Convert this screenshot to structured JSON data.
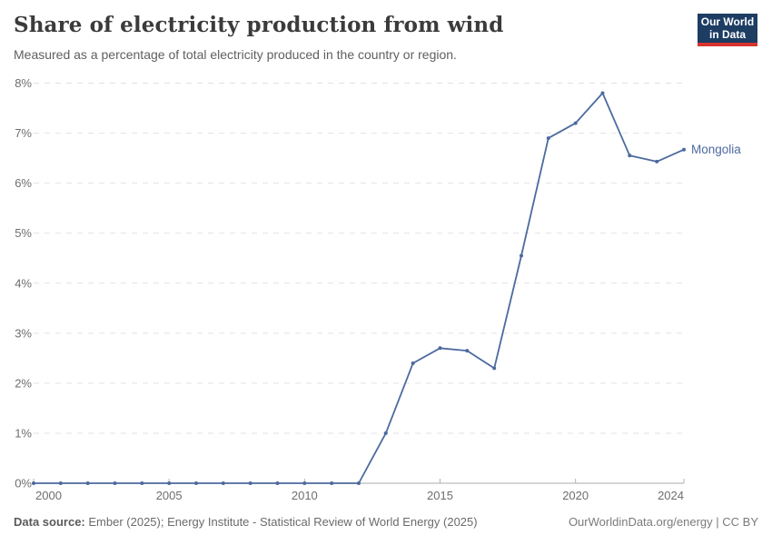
{
  "header": {
    "logo_line1": "Our World",
    "logo_line2": "in Data"
  },
  "chart_data": {
    "type": "line",
    "title": "Share of electricity production from wind",
    "subtitle": "Measured as a percentage of total electricity produced in the country or region.",
    "xlabel": "",
    "ylabel": "",
    "xlim": [
      2000,
      2024
    ],
    "ylim": [
      0,
      8
    ],
    "grid": "horizontal-dashed",
    "legend_position": "end-of-line-label",
    "xticks": [
      2000,
      2005,
      2010,
      2015,
      2020,
      2024
    ],
    "yticks": [
      0,
      1,
      2,
      3,
      4,
      5,
      6,
      7,
      8
    ],
    "ytick_labels": [
      "0%",
      "1%",
      "2%",
      "3%",
      "4%",
      "5%",
      "6%",
      "7%",
      "8%"
    ],
    "x": [
      2000,
      2001,
      2002,
      2003,
      2004,
      2005,
      2006,
      2007,
      2008,
      2009,
      2010,
      2011,
      2012,
      2013,
      2014,
      2015,
      2016,
      2017,
      2018,
      2019,
      2020,
      2021,
      2022,
      2023,
      2024
    ],
    "series": [
      {
        "name": "Mongolia",
        "color": "#4c6a9f",
        "values": [
          0,
          0,
          0,
          0,
          0,
          0,
          0,
          0,
          0,
          0,
          0,
          0,
          0,
          1.0,
          2.4,
          2.7,
          2.65,
          2.3,
          4.55,
          6.9,
          7.2,
          7.8,
          6.55,
          6.43,
          6.67
        ]
      }
    ]
  },
  "footer": {
    "source_label": "Data source:",
    "source_text": "Ember (2025); Energy Institute - Statistical Review of World Energy (2025)",
    "right_text": "OurWorldinData.org/energy | CC BY"
  },
  "colors": {
    "line": "#4c6a9f",
    "grid": "#e2e2e2",
    "axis": "#a8a8a8",
    "tick_mark": "#b3b3b3",
    "tick_text": "#6e6e6e",
    "logo_bg": "#1d3d63",
    "logo_stripe": "#d7342f"
  }
}
